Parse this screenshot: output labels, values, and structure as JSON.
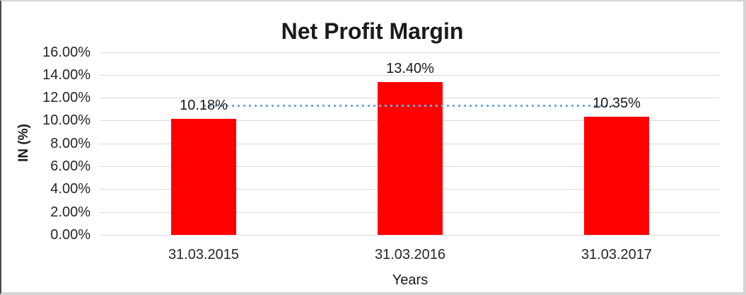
{
  "chart_data": {
    "type": "bar",
    "title": "Net Profit Margin",
    "xlabel": "Years",
    "ylabel": "IN (%)",
    "categories": [
      "31.03.2015",
      "31.03.2016",
      "31.03.2017"
    ],
    "values": [
      10.18,
      13.4,
      10.35
    ],
    "value_labels": [
      "10.18%",
      "13.40%",
      "10.35%"
    ],
    "ylim": [
      0,
      16
    ],
    "ytick_step": 2,
    "ytick_labels": [
      "0.00%",
      "2.00%",
      "4.00%",
      "6.00%",
      "8.00%",
      "10.00%",
      "12.00%",
      "14.00%",
      "16.00%"
    ],
    "grid": true,
    "legend": "none",
    "bar_color": "#ff0000",
    "trendline": {
      "type": "average",
      "value": 11.31,
      "style": "dotted",
      "color": "#6fa8dc"
    },
    "gridline_color": "#d9d9d9",
    "text_color": "#1a1a1a"
  }
}
